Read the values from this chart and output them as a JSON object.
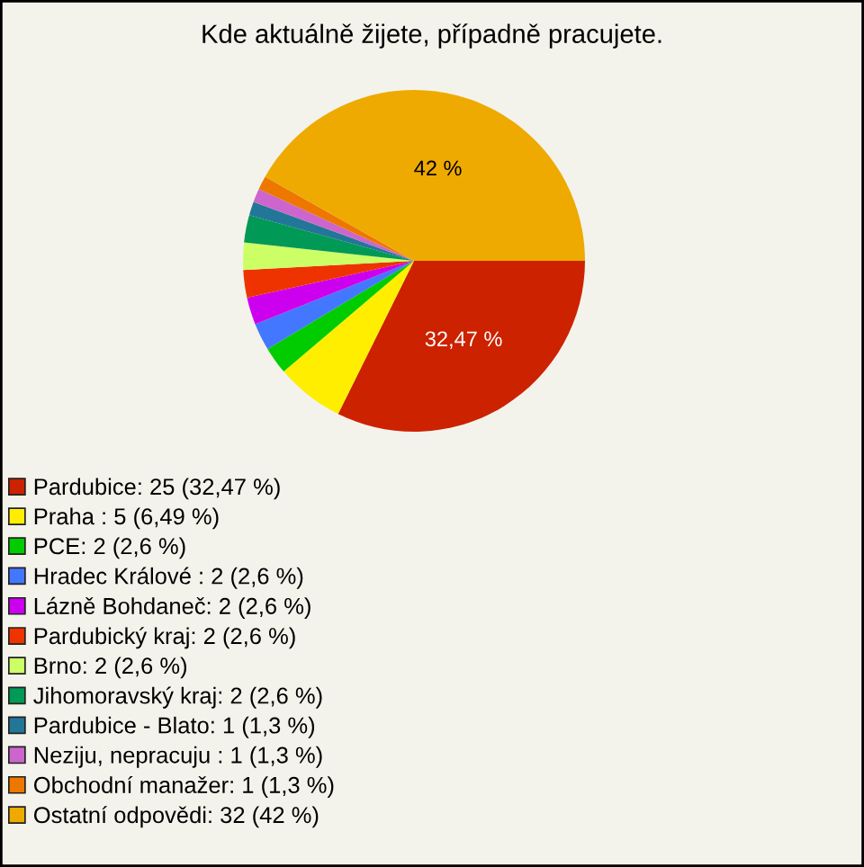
{
  "chart_data": {
    "type": "pie",
    "title": "Kde aktuálně žijete, případně pracujete.",
    "categories": [
      "Pardubice: 25 (32,47 %)",
      "Praha : 5 (6,49 %)",
      "PCE: 2 (2,6 %)",
      "Hradec Králové : 2 (2,6 %)",
      "Lázně Bohdaneč: 2 (2,6 %)",
      "Pardubický kraj: 2 (2,6 %)",
      "Brno: 2 (2,6 %)",
      "Jihomoravský kraj: 2 (2,6 %)",
      "Pardubice - Blato: 1 (1,3 %)",
      "Neziju, nepracuju : 1 (1,3 %)",
      "Obchodní manažer: 1 (1,3 %)",
      "Ostatní odpovědi: 32 (42 %)"
    ],
    "values": [
      32.47,
      6.49,
      2.6,
      2.6,
      2.6,
      2.6,
      2.6,
      2.6,
      1.3,
      1.3,
      1.3,
      42
    ],
    "colors": [
      "#cc2200",
      "#ffee00",
      "#00cc00",
      "#4477ff",
      "#cc00ee",
      "#ee3300",
      "#ccff66",
      "#009955",
      "#227799",
      "#cc66cc",
      "#ee7700",
      "#eeaa00"
    ],
    "value_labels": [
      "32,47 %",
      null,
      null,
      null,
      null,
      null,
      null,
      null,
      null,
      null,
      null,
      "42 %"
    ],
    "legend": "bottom left"
  }
}
